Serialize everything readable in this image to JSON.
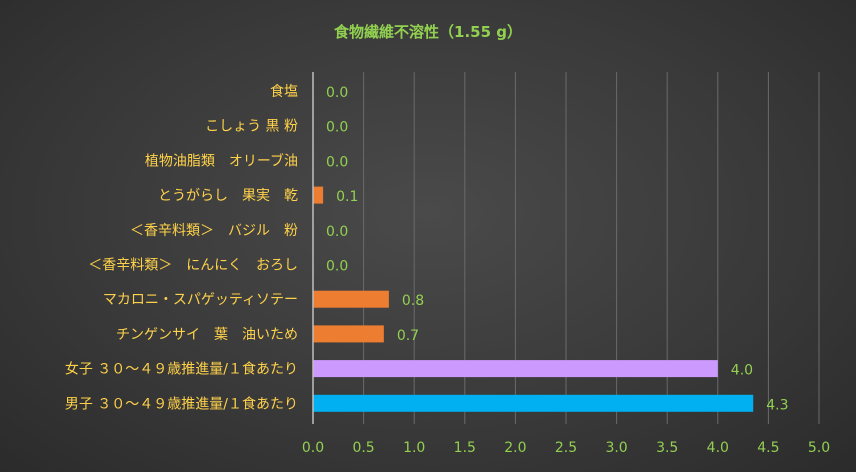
{
  "chart_data": {
    "type": "bar",
    "orientation": "horizontal",
    "title": "食物繊維不溶性（1.55 g）",
    "xlabel": "",
    "ylabel": "",
    "xlim": [
      0,
      5
    ],
    "x_ticks": [
      "0.0",
      "0.5",
      "1.0",
      "1.5",
      "2.0",
      "2.5",
      "3.0",
      "3.5",
      "4.0",
      "4.5",
      "5.0"
    ],
    "grid": true,
    "legend": "none",
    "categories": [
      "食塩",
      "こしょう 黒 粉",
      "植物油脂類　オリーブ油",
      "とうがらし　果実　乾",
      "＜香辛料類＞　バジル　粉",
      "＜香辛料類＞　にんにく　おろし",
      "マカロニ・スパゲッティソテー",
      "チンゲンサイ　葉　油いため",
      "女子 ３０～４９歳推進量/１食あたり",
      "男子 ３０～４９歳推進量/１食あたり"
    ],
    "values": [
      0.0,
      0.0,
      0.0,
      0.1,
      0.0,
      0.0,
      0.75,
      0.7,
      4.0,
      4.35
    ],
    "value_labels": [
      "0.0",
      "0.0",
      "0.0",
      "0.1",
      "0.0",
      "0.0",
      "0.8",
      "0.7",
      "4.0",
      "4.3"
    ],
    "bar_colors": [
      "#ed7d31",
      "#ed7d31",
      "#ed7d31",
      "#ed7d31",
      "#ed7d31",
      "#ed7d31",
      "#ed7d31",
      "#ed7d31",
      "#cc99ff",
      "#00b0f0"
    ],
    "colors": {
      "title": "#92d050",
      "category_label": "#ffd24a",
      "tick_label": "#92d050",
      "value_label": "#92d050"
    }
  }
}
